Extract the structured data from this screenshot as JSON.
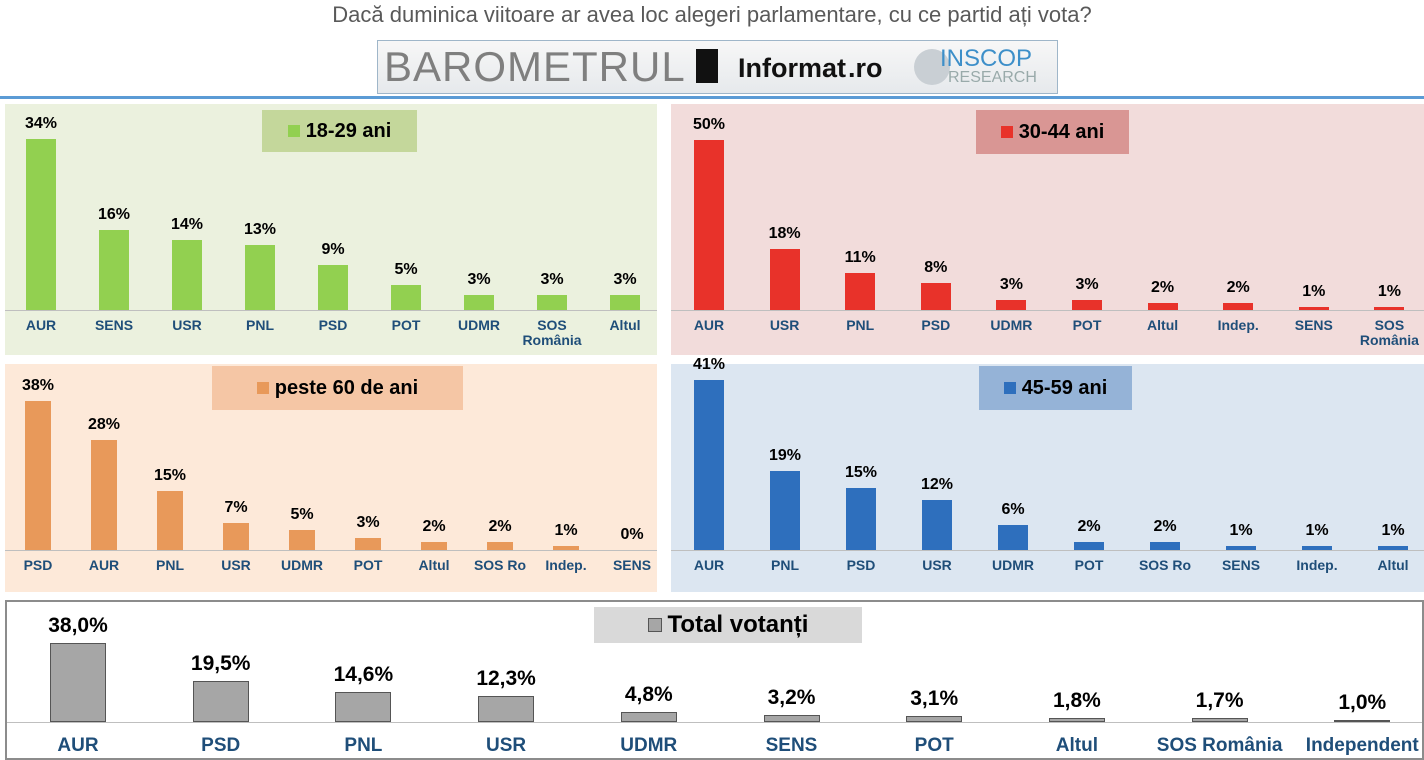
{
  "header": {
    "title": "Dacă duminica viitoare ar avea loc alegeri parlamentare, cu ce partid ați vota?",
    "logos": [
      "BAROMETRUL",
      "Informat",
      ".ro",
      "INSCOP",
      "RESEARCH"
    ]
  },
  "chart_data": [
    {
      "type": "bar",
      "title": "18-29 ani",
      "color": "#92d050",
      "categories": [
        "AUR",
        "SENS",
        "USR",
        "PNL",
        "PSD",
        "POT",
        "UDMR",
        "SOS România",
        "Altul"
      ],
      "values": [
        34,
        16,
        14,
        13,
        9,
        5,
        3,
        3,
        3
      ],
      "value_labels": [
        "34%",
        "16%",
        "14%",
        "13%",
        "9%",
        "5%",
        "3%",
        "3%",
        "3%"
      ]
    },
    {
      "type": "bar",
      "title": "30-44 ani",
      "color": "#e8322a",
      "categories": [
        "AUR",
        "USR",
        "PNL",
        "PSD",
        "UDMR",
        "POT",
        "Altul",
        "Indep.",
        "SENS",
        "SOS România"
      ],
      "values": [
        50,
        18,
        11,
        8,
        3,
        3,
        2,
        2,
        1,
        1
      ],
      "value_labels": [
        "50%",
        "18%",
        "11%",
        "8%",
        "3%",
        "3%",
        "2%",
        "2%",
        "1%",
        "1%"
      ]
    },
    {
      "type": "bar",
      "title": "peste 60 de ani",
      "color": "#e8995a",
      "categories": [
        "PSD",
        "AUR",
        "PNL",
        "USR",
        "UDMR",
        "POT",
        "Altul",
        "SOS Ro",
        "Indep.",
        "SENS"
      ],
      "values": [
        38,
        28,
        15,
        7,
        5,
        3,
        2,
        2,
        1,
        0
      ],
      "value_labels": [
        "38%",
        "28%",
        "15%",
        "7%",
        "5%",
        "3%",
        "2%",
        "2%",
        "1%",
        "0%"
      ]
    },
    {
      "type": "bar",
      "title": "45-59 ani",
      "color": "#2e6fbd",
      "categories": [
        "AUR",
        "PNL",
        "PSD",
        "USR",
        "UDMR",
        "POT",
        "SOS Ro",
        "SENS",
        "Indep.",
        "Altul"
      ],
      "values": [
        41,
        19,
        15,
        12,
        6,
        2,
        2,
        1,
        1,
        1
      ],
      "value_labels": [
        "41%",
        "19%",
        "15%",
        "12%",
        "6%",
        "2%",
        "2%",
        "1%",
        "1%",
        "1%"
      ]
    },
    {
      "type": "bar",
      "title": "Total votanți",
      "color": "#a6a6a6",
      "categories": [
        "AUR",
        "PSD",
        "PNL",
        "USR",
        "UDMR",
        "SENS",
        "POT",
        "Altul",
        "SOS România",
        "Independent"
      ],
      "values": [
        38.0,
        19.5,
        14.6,
        12.3,
        4.8,
        3.2,
        3.1,
        1.8,
        1.7,
        1.0
      ],
      "value_labels": [
        "38,0%",
        "19,5%",
        "14,6%",
        "12,3%",
        "4,8%",
        "3,2%",
        "3,1%",
        "1,8%",
        "1,7%",
        "1,0%"
      ]
    }
  ]
}
